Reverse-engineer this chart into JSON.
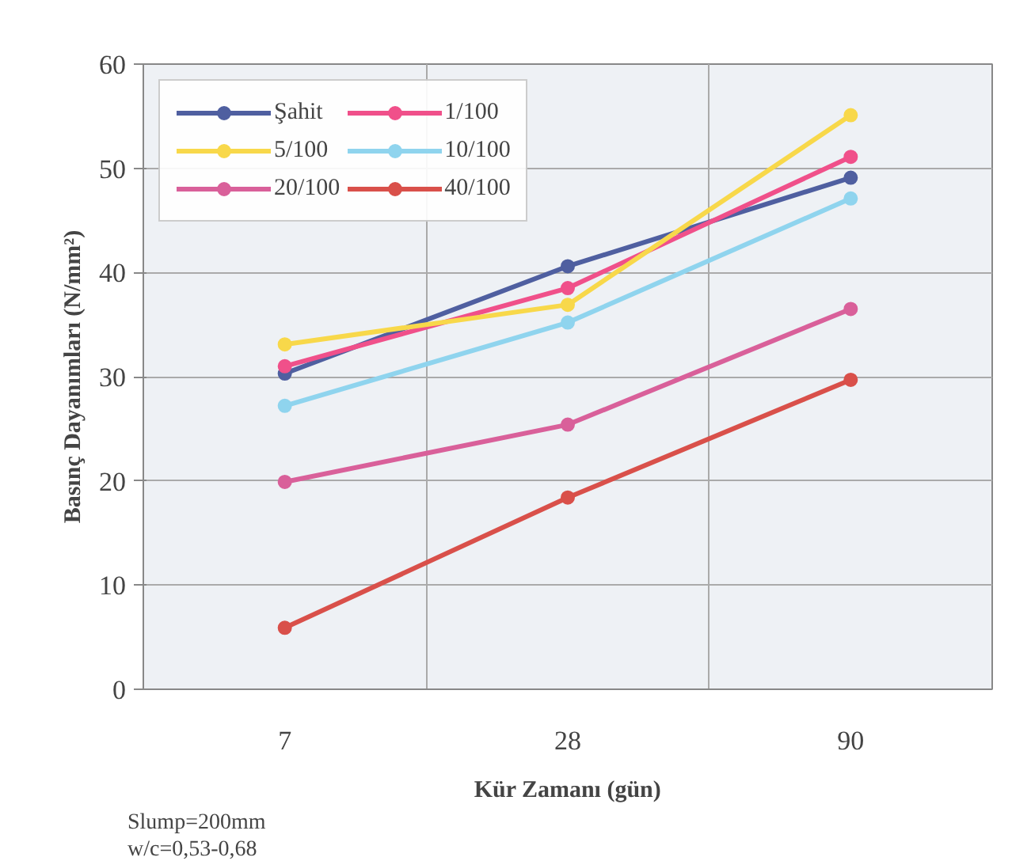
{
  "chart_data": {
    "type": "line",
    "xlabel": "Kür Zamanı (gün)",
    "ylabel": "Basınç Dayanımları (N/mm²)",
    "categories": [
      "7",
      "28",
      "90"
    ],
    "ylim": [
      0,
      60
    ],
    "yticks": [
      0,
      10,
      20,
      30,
      40,
      50,
      60
    ],
    "grid": true,
    "legend": "top left",
    "marker": "circle",
    "line_style": "solid",
    "annotations": [
      "Slump=200mm",
      "w/c=0,53-0,68"
    ],
    "series": [
      {
        "name": "Şahit",
        "color": "#4f5fa0",
        "values": [
          30.3,
          40.6,
          49.1
        ]
      },
      {
        "name": "1/100",
        "color": "#f0508a",
        "values": [
          31.0,
          38.5,
          51.1
        ]
      },
      {
        "name": "5/100",
        "color": "#f8d84a",
        "values": [
          33.1,
          36.9,
          55.1
        ]
      },
      {
        "name": "10/100",
        "color": "#8fd4ee",
        "values": [
          27.2,
          35.2,
          47.1
        ]
      },
      {
        "name": "20/100",
        "color": "#d9609a",
        "values": [
          19.9,
          25.4,
          36.5
        ]
      },
      {
        "name": "40/100",
        "color": "#d9504a",
        "values": [
          5.9,
          18.4,
          29.7
        ]
      }
    ]
  }
}
